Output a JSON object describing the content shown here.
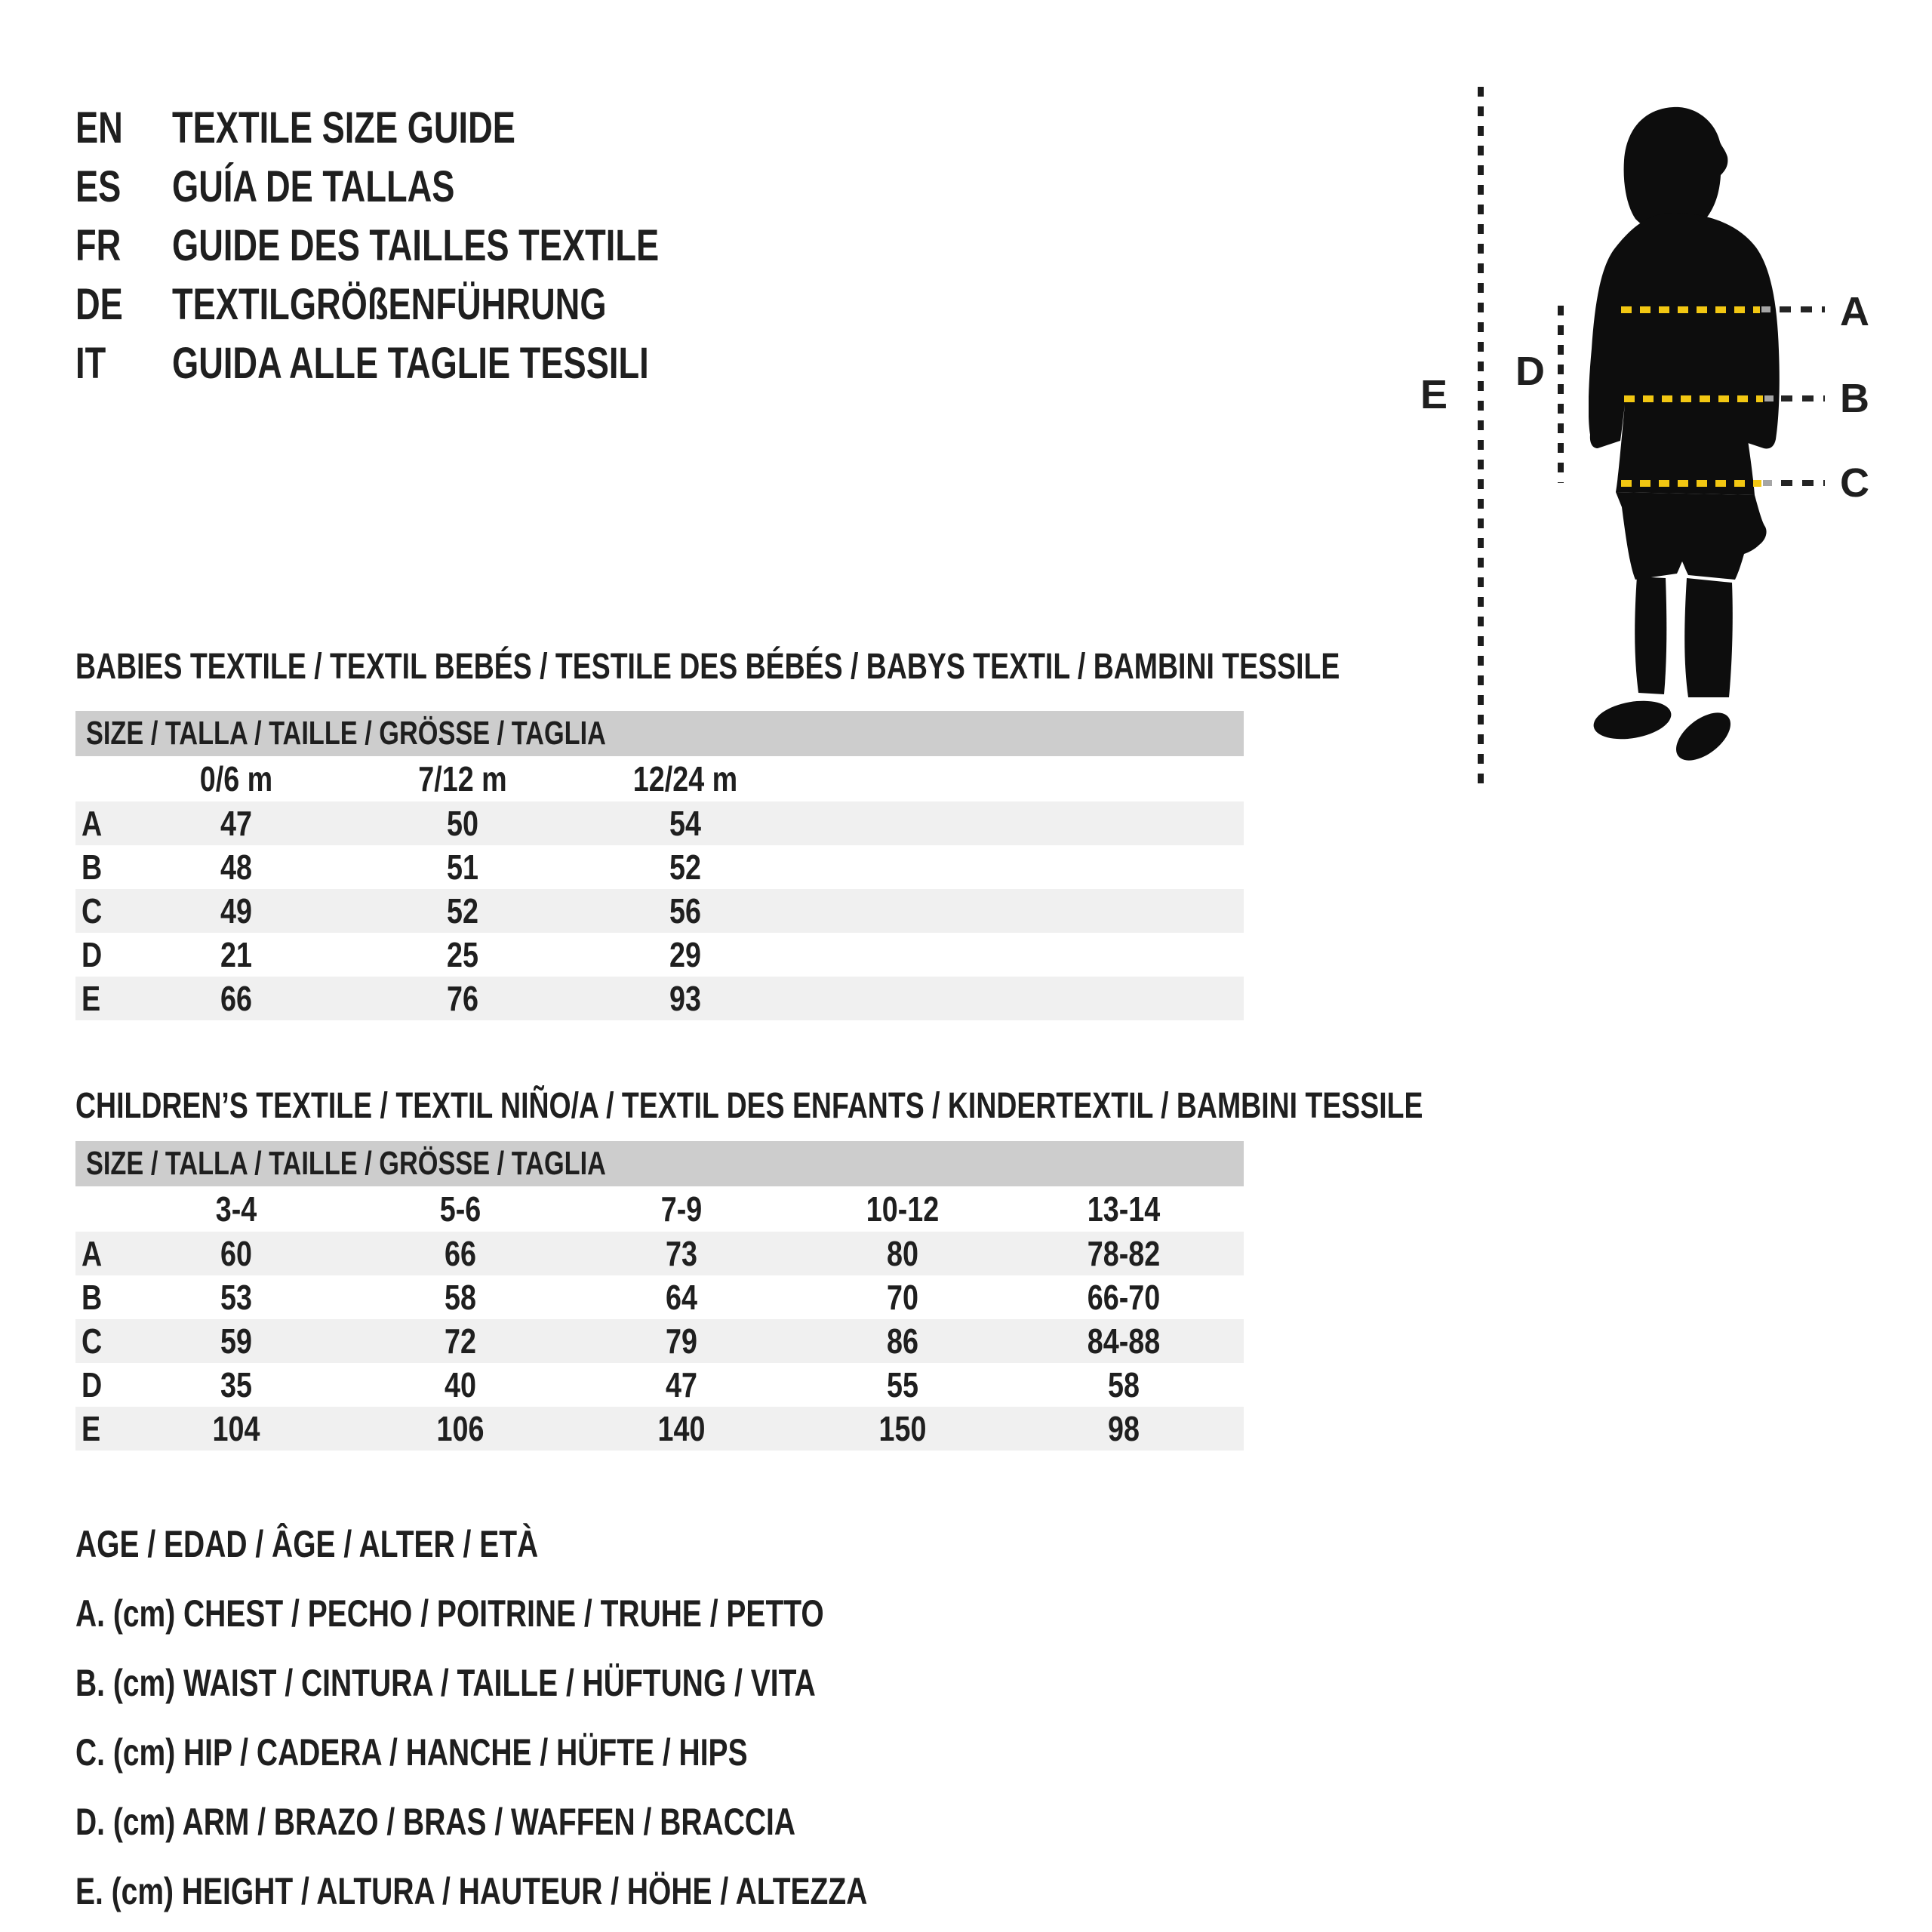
{
  "colors": {
    "ink": "#1f1f1f",
    "accent_yellow": "#f2c712",
    "table_header_gray": "#cdcdcd",
    "row_alt_gray": "#f0f0f0",
    "background": "#ffffff"
  },
  "languages": [
    {
      "code": "EN",
      "label": "TEXTILE SIZE GUIDE"
    },
    {
      "code": "ES",
      "label": "GUÍA DE TALLAS"
    },
    {
      "code": "FR",
      "label": "GUIDE DES TAILLES TEXTILE"
    },
    {
      "code": "DE",
      "label": "TEXTILGRÖßENFÜHRUNG"
    },
    {
      "code": "IT",
      "label": "GUIDA ALLE TAGLIE TESSILI"
    }
  ],
  "figure": {
    "a_label": "A",
    "b_label": "B",
    "c_label": "C",
    "d_label": "D",
    "e_label": "E",
    "silhouette": "child-silhouette"
  },
  "babies": {
    "title": "BABIES TEXTILE / TEXTIL BEBÉS / TESTILE DES BÉBÉS / BABYS TEXTIL / BAMBINI TESSILE",
    "size_header": "SIZE / TALLA / TAILLE / GRÖSSE / TAGLIA",
    "columns": [
      "0/6 m",
      "7/12 m",
      "12/24 m"
    ],
    "rows": [
      {
        "label": "A",
        "values": [
          "47",
          "50",
          "54"
        ]
      },
      {
        "label": "B",
        "values": [
          "48",
          "51",
          "52"
        ]
      },
      {
        "label": "C",
        "values": [
          "49",
          "52",
          "56"
        ]
      },
      {
        "label": "D",
        "values": [
          "21",
          "25",
          "29"
        ]
      },
      {
        "label": "E",
        "values": [
          "66",
          "76",
          "93"
        ]
      }
    ]
  },
  "children": {
    "title": "CHILDREN’S TEXTILE / TEXTIL NIÑO/A / TEXTIL DES ENFANTS / KINDERTEXTIL / BAMBINI TESSILE",
    "size_header": "SIZE / TALLA / TAILLE / GRÖSSE / TAGLIA",
    "columns": [
      "3-4",
      "5-6",
      "7-9",
      "10-12",
      "13-14"
    ],
    "rows": [
      {
        "label": "A",
        "values": [
          "60",
          "66",
          "73",
          "80",
          "78-82"
        ]
      },
      {
        "label": "B",
        "values": [
          "53",
          "58",
          "64",
          "70",
          "66-70"
        ]
      },
      {
        "label": "C",
        "values": [
          "59",
          "72",
          "79",
          "86",
          "84-88"
        ]
      },
      {
        "label": "D",
        "values": [
          "35",
          "40",
          "47",
          "55",
          "58"
        ]
      },
      {
        "label": "E",
        "values": [
          "104",
          "106",
          "140",
          "150",
          "98"
        ]
      }
    ]
  },
  "legend": [
    "AGE / EDAD / ÂGE / ALTER / ETÀ",
    "A. (cm) CHEST / PECHO / POITRINE / TRUHE / PETTO",
    "B. (cm) WAIST / CINTURA / TAILLE / HÜFTUNG / VITA",
    "C. (cm) HIP / CADERA / HANCHE / HÜFTE / HIPS",
    "D. (cm) ARM / BRAZO / BRAS / WAFFEN / BRACCIA",
    "E. (cm) HEIGHT / ALTURA / HAUTEUR / HÖHE / ALTEZZA"
  ]
}
